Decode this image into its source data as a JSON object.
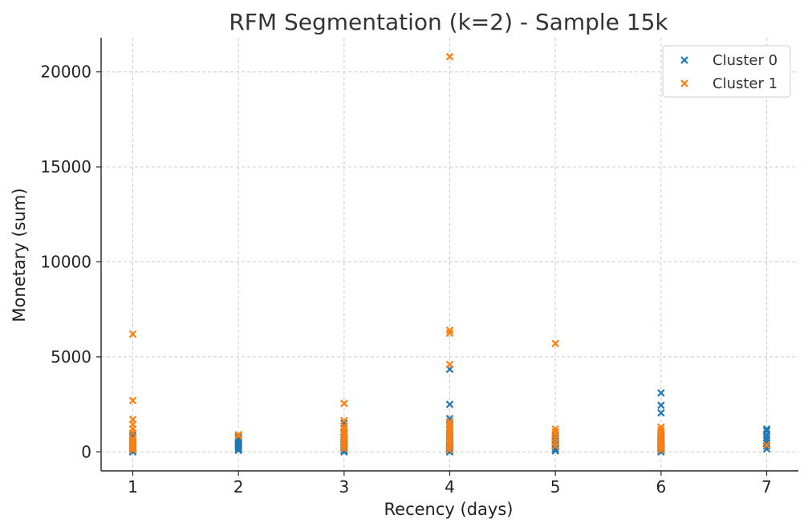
{
  "chart_data": {
    "type": "scatter",
    "title": "RFM Segmentation (k=2) - Sample 15k",
    "xlabel": "Recency (days)",
    "ylabel": "Monetary (sum)",
    "xlim": [
      0.7,
      7.3
    ],
    "ylim": [
      -1000,
      21800
    ],
    "xticks": [
      1,
      2,
      3,
      4,
      5,
      6,
      7
    ],
    "yticks": [
      0,
      5000,
      10000,
      15000,
      20000
    ],
    "grid": true,
    "legend_position": "top-right",
    "marker": "x",
    "series": [
      {
        "name": "Cluster 0",
        "color": "#1f77b4",
        "points": [
          [
            1,
            0
          ],
          [
            1,
            80
          ],
          [
            1,
            150
          ],
          [
            1,
            220
          ],
          [
            1,
            300
          ],
          [
            1,
            380
          ],
          [
            1,
            450
          ],
          [
            1,
            520
          ],
          [
            1,
            600
          ],
          [
            1,
            700
          ],
          [
            1,
            800
          ],
          [
            1,
            900
          ],
          [
            2,
            80
          ],
          [
            2,
            150
          ],
          [
            2,
            220
          ],
          [
            2,
            300
          ],
          [
            2,
            380
          ],
          [
            2,
            450
          ],
          [
            2,
            520
          ],
          [
            2,
            600
          ],
          [
            2,
            700
          ],
          [
            2,
            800
          ],
          [
            3,
            0
          ],
          [
            3,
            80
          ],
          [
            3,
            150
          ],
          [
            3,
            220
          ],
          [
            3,
            300
          ],
          [
            3,
            380
          ],
          [
            3,
            450
          ],
          [
            3,
            520
          ],
          [
            3,
            600
          ],
          [
            3,
            700
          ],
          [
            3,
            800
          ],
          [
            3,
            900
          ],
          [
            3,
            1000
          ],
          [
            3,
            1500
          ],
          [
            4,
            0
          ],
          [
            4,
            80
          ],
          [
            4,
            150
          ],
          [
            4,
            220
          ],
          [
            4,
            300
          ],
          [
            4,
            380
          ],
          [
            4,
            450
          ],
          [
            4,
            520
          ],
          [
            4,
            600
          ],
          [
            4,
            700
          ],
          [
            4,
            800
          ],
          [
            4,
            900
          ],
          [
            4,
            1000
          ],
          [
            4,
            1200
          ],
          [
            4,
            1400
          ],
          [
            4,
            1600
          ],
          [
            4,
            1750
          ],
          [
            4,
            2500
          ],
          [
            4,
            4350
          ],
          [
            5,
            50
          ],
          [
            5,
            150
          ],
          [
            5,
            250
          ],
          [
            5,
            350
          ],
          [
            5,
            450
          ],
          [
            5,
            550
          ],
          [
            5,
            650
          ],
          [
            5,
            750
          ],
          [
            5,
            850
          ],
          [
            6,
            0
          ],
          [
            6,
            80
          ],
          [
            6,
            150
          ],
          [
            6,
            220
          ],
          [
            6,
            300
          ],
          [
            6,
            380
          ],
          [
            6,
            450
          ],
          [
            6,
            520
          ],
          [
            6,
            600
          ],
          [
            6,
            700
          ],
          [
            6,
            800
          ],
          [
            6,
            900
          ],
          [
            6,
            1000
          ],
          [
            6,
            2050
          ],
          [
            6,
            2450
          ],
          [
            6,
            3100
          ],
          [
            7,
            150
          ],
          [
            7,
            300
          ],
          [
            7,
            450
          ],
          [
            7,
            600
          ],
          [
            7,
            750
          ],
          [
            7,
            900
          ],
          [
            7,
            1100
          ],
          [
            7,
            1200
          ]
        ]
      },
      {
        "name": "Cluster 1",
        "color": "#ff7f0e",
        "points": [
          [
            1,
            100
          ],
          [
            1,
            200
          ],
          [
            1,
            300
          ],
          [
            1,
            400
          ],
          [
            1,
            500
          ],
          [
            1,
            600
          ],
          [
            1,
            700
          ],
          [
            1,
            1000
          ],
          [
            1,
            1200
          ],
          [
            1,
            1450
          ],
          [
            1,
            1700
          ],
          [
            1,
            2700
          ],
          [
            1,
            6200
          ],
          [
            2,
            850
          ],
          [
            2,
            900
          ],
          [
            3,
            150
          ],
          [
            3,
            300
          ],
          [
            3,
            450
          ],
          [
            3,
            600
          ],
          [
            3,
            750
          ],
          [
            3,
            900
          ],
          [
            3,
            1050
          ],
          [
            3,
            1200
          ],
          [
            3,
            1350
          ],
          [
            3,
            1650
          ],
          [
            3,
            2550
          ],
          [
            4,
            100
          ],
          [
            4,
            250
          ],
          [
            4,
            400
          ],
          [
            4,
            550
          ],
          [
            4,
            700
          ],
          [
            4,
            850
          ],
          [
            4,
            1000
          ],
          [
            4,
            1150
          ],
          [
            4,
            1300
          ],
          [
            4,
            1450
          ],
          [
            4,
            1600
          ],
          [
            4,
            4600
          ],
          [
            4,
            6250
          ],
          [
            4,
            6400
          ],
          [
            4,
            20800
          ],
          [
            5,
            300
          ],
          [
            5,
            500
          ],
          [
            5,
            700
          ],
          [
            5,
            900
          ],
          [
            5,
            1050
          ],
          [
            5,
            1200
          ],
          [
            5,
            5700
          ],
          [
            6,
            100
          ],
          [
            6,
            250
          ],
          [
            6,
            400
          ],
          [
            6,
            550
          ],
          [
            6,
            700
          ],
          [
            6,
            850
          ],
          [
            6,
            1000
          ],
          [
            6,
            1150
          ],
          [
            6,
            1300
          ],
          [
            7,
            350
          ]
        ]
      }
    ]
  }
}
